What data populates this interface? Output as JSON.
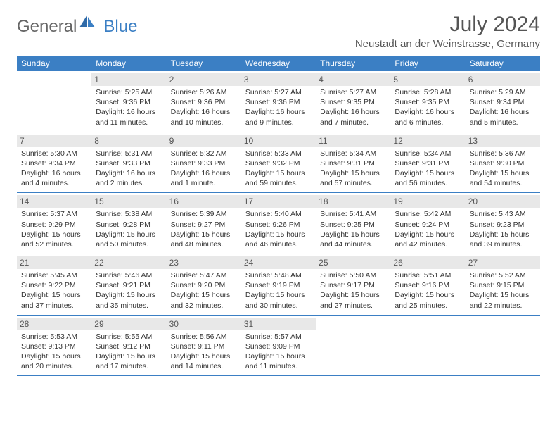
{
  "brand": {
    "part1": "General",
    "part2": "Blue"
  },
  "title": "July 2024",
  "location": "Neustadt an der Weinstrasse, Germany",
  "colors": {
    "header_bg": "#3b7fc4",
    "daynum_bg": "#e8e8e8",
    "text": "#333333",
    "muted": "#555555",
    "background": "#ffffff"
  },
  "typography": {
    "base_font": "Arial",
    "title_size_pt": 22,
    "body_size_pt": 8
  },
  "weekdays": [
    "Sunday",
    "Monday",
    "Tuesday",
    "Wednesday",
    "Thursday",
    "Friday",
    "Saturday"
  ],
  "weeks": [
    [
      null,
      {
        "n": "1",
        "sr": "Sunrise: 5:25 AM",
        "ss": "Sunset: 9:36 PM",
        "d1": "Daylight: 16 hours",
        "d2": "and 11 minutes."
      },
      {
        "n": "2",
        "sr": "Sunrise: 5:26 AM",
        "ss": "Sunset: 9:36 PM",
        "d1": "Daylight: 16 hours",
        "d2": "and 10 minutes."
      },
      {
        "n": "3",
        "sr": "Sunrise: 5:27 AM",
        "ss": "Sunset: 9:36 PM",
        "d1": "Daylight: 16 hours",
        "d2": "and 9 minutes."
      },
      {
        "n": "4",
        "sr": "Sunrise: 5:27 AM",
        "ss": "Sunset: 9:35 PM",
        "d1": "Daylight: 16 hours",
        "d2": "and 7 minutes."
      },
      {
        "n": "5",
        "sr": "Sunrise: 5:28 AM",
        "ss": "Sunset: 9:35 PM",
        "d1": "Daylight: 16 hours",
        "d2": "and 6 minutes."
      },
      {
        "n": "6",
        "sr": "Sunrise: 5:29 AM",
        "ss": "Sunset: 9:34 PM",
        "d1": "Daylight: 16 hours",
        "d2": "and 5 minutes."
      }
    ],
    [
      {
        "n": "7",
        "sr": "Sunrise: 5:30 AM",
        "ss": "Sunset: 9:34 PM",
        "d1": "Daylight: 16 hours",
        "d2": "and 4 minutes."
      },
      {
        "n": "8",
        "sr": "Sunrise: 5:31 AM",
        "ss": "Sunset: 9:33 PM",
        "d1": "Daylight: 16 hours",
        "d2": "and 2 minutes."
      },
      {
        "n": "9",
        "sr": "Sunrise: 5:32 AM",
        "ss": "Sunset: 9:33 PM",
        "d1": "Daylight: 16 hours",
        "d2": "and 1 minute."
      },
      {
        "n": "10",
        "sr": "Sunrise: 5:33 AM",
        "ss": "Sunset: 9:32 PM",
        "d1": "Daylight: 15 hours",
        "d2": "and 59 minutes."
      },
      {
        "n": "11",
        "sr": "Sunrise: 5:34 AM",
        "ss": "Sunset: 9:31 PM",
        "d1": "Daylight: 15 hours",
        "d2": "and 57 minutes."
      },
      {
        "n": "12",
        "sr": "Sunrise: 5:34 AM",
        "ss": "Sunset: 9:31 PM",
        "d1": "Daylight: 15 hours",
        "d2": "and 56 minutes."
      },
      {
        "n": "13",
        "sr": "Sunrise: 5:36 AM",
        "ss": "Sunset: 9:30 PM",
        "d1": "Daylight: 15 hours",
        "d2": "and 54 minutes."
      }
    ],
    [
      {
        "n": "14",
        "sr": "Sunrise: 5:37 AM",
        "ss": "Sunset: 9:29 PM",
        "d1": "Daylight: 15 hours",
        "d2": "and 52 minutes."
      },
      {
        "n": "15",
        "sr": "Sunrise: 5:38 AM",
        "ss": "Sunset: 9:28 PM",
        "d1": "Daylight: 15 hours",
        "d2": "and 50 minutes."
      },
      {
        "n": "16",
        "sr": "Sunrise: 5:39 AM",
        "ss": "Sunset: 9:27 PM",
        "d1": "Daylight: 15 hours",
        "d2": "and 48 minutes."
      },
      {
        "n": "17",
        "sr": "Sunrise: 5:40 AM",
        "ss": "Sunset: 9:26 PM",
        "d1": "Daylight: 15 hours",
        "d2": "and 46 minutes."
      },
      {
        "n": "18",
        "sr": "Sunrise: 5:41 AM",
        "ss": "Sunset: 9:25 PM",
        "d1": "Daylight: 15 hours",
        "d2": "and 44 minutes."
      },
      {
        "n": "19",
        "sr": "Sunrise: 5:42 AM",
        "ss": "Sunset: 9:24 PM",
        "d1": "Daylight: 15 hours",
        "d2": "and 42 minutes."
      },
      {
        "n": "20",
        "sr": "Sunrise: 5:43 AM",
        "ss": "Sunset: 9:23 PM",
        "d1": "Daylight: 15 hours",
        "d2": "and 39 minutes."
      }
    ],
    [
      {
        "n": "21",
        "sr": "Sunrise: 5:45 AM",
        "ss": "Sunset: 9:22 PM",
        "d1": "Daylight: 15 hours",
        "d2": "and 37 minutes."
      },
      {
        "n": "22",
        "sr": "Sunrise: 5:46 AM",
        "ss": "Sunset: 9:21 PM",
        "d1": "Daylight: 15 hours",
        "d2": "and 35 minutes."
      },
      {
        "n": "23",
        "sr": "Sunrise: 5:47 AM",
        "ss": "Sunset: 9:20 PM",
        "d1": "Daylight: 15 hours",
        "d2": "and 32 minutes."
      },
      {
        "n": "24",
        "sr": "Sunrise: 5:48 AM",
        "ss": "Sunset: 9:19 PM",
        "d1": "Daylight: 15 hours",
        "d2": "and 30 minutes."
      },
      {
        "n": "25",
        "sr": "Sunrise: 5:50 AM",
        "ss": "Sunset: 9:17 PM",
        "d1": "Daylight: 15 hours",
        "d2": "and 27 minutes."
      },
      {
        "n": "26",
        "sr": "Sunrise: 5:51 AM",
        "ss": "Sunset: 9:16 PM",
        "d1": "Daylight: 15 hours",
        "d2": "and 25 minutes."
      },
      {
        "n": "27",
        "sr": "Sunrise: 5:52 AM",
        "ss": "Sunset: 9:15 PM",
        "d1": "Daylight: 15 hours",
        "d2": "and 22 minutes."
      }
    ],
    [
      {
        "n": "28",
        "sr": "Sunrise: 5:53 AM",
        "ss": "Sunset: 9:13 PM",
        "d1": "Daylight: 15 hours",
        "d2": "and 20 minutes."
      },
      {
        "n": "29",
        "sr": "Sunrise: 5:55 AM",
        "ss": "Sunset: 9:12 PM",
        "d1": "Daylight: 15 hours",
        "d2": "and 17 minutes."
      },
      {
        "n": "30",
        "sr": "Sunrise: 5:56 AM",
        "ss": "Sunset: 9:11 PM",
        "d1": "Daylight: 15 hours",
        "d2": "and 14 minutes."
      },
      {
        "n": "31",
        "sr": "Sunrise: 5:57 AM",
        "ss": "Sunset: 9:09 PM",
        "d1": "Daylight: 15 hours",
        "d2": "and 11 minutes."
      },
      null,
      null,
      null
    ]
  ]
}
